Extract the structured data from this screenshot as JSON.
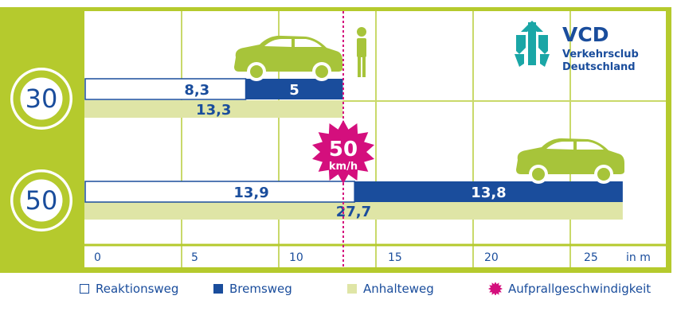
{
  "chart_data": {
    "type": "bar",
    "x_unit": "in m",
    "xlim": [
      -1,
      29
    ],
    "x_ticks": [
      0,
      5,
      10,
      15,
      20,
      25
    ],
    "categories": [
      "30",
      "50"
    ],
    "series": [
      {
        "name": "Reaktionsweg",
        "values": [
          8.3,
          13.9
        ],
        "labels": [
          "8,3",
          "13,9"
        ]
      },
      {
        "name": "Bremsweg",
        "values": [
          5,
          13.8
        ],
        "labels": [
          "5",
          "13,8"
        ]
      },
      {
        "name": "Anhalteweg",
        "values": [
          13.3,
          27.7
        ],
        "labels": [
          "13,3",
          "27,7"
        ]
      }
    ],
    "impact_line_x": 13.3,
    "impact_badge": {
      "speed": "50",
      "unit": "km/h"
    },
    "legend_position": "bottom",
    "grid": true
  },
  "legend": [
    {
      "label": "Reaktionsweg",
      "kind": "reaction"
    },
    {
      "label": "Bremsweg",
      "kind": "braking"
    },
    {
      "label": "Anhalteweg",
      "kind": "stopping"
    },
    {
      "label": "Aufprallgeschwindigkeit",
      "kind": "impact"
    }
  ],
  "logo": {
    "abbr": "VCD",
    "line1": "Verkehrsclub",
    "line2": "Deutschland"
  },
  "colors": {
    "frame": "#b5ca2d",
    "grid": "#c9d96a",
    "reaction_fill": "#ffffff",
    "reaction_border": "#1a4d9c",
    "braking": "#1a4d9c",
    "stopping": "#dfe5a6",
    "text_blue": "#1a4d9c",
    "impact": "#d40f7d",
    "logo_teal": "#1aa6a6",
    "car": "#a7c43a"
  }
}
